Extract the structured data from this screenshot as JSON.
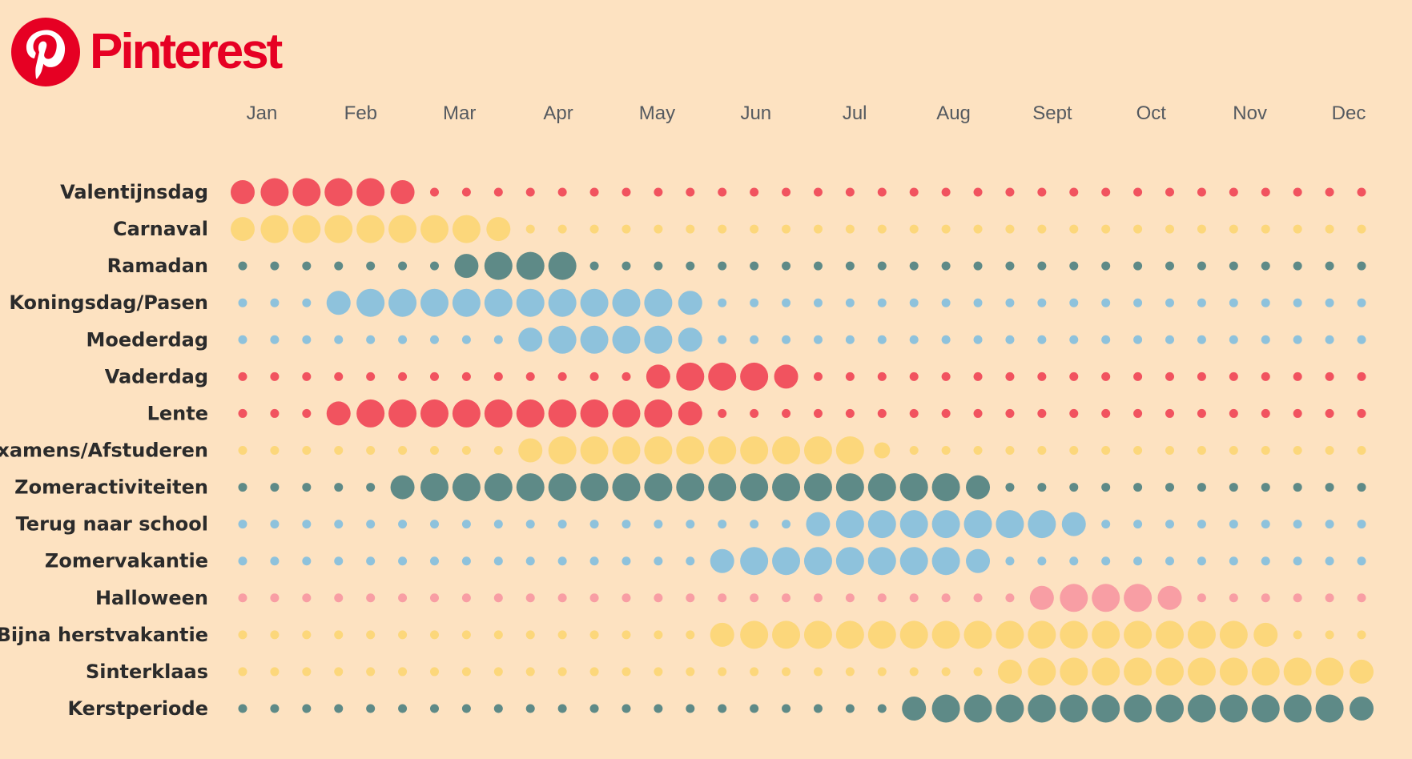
{
  "brand": {
    "name": "Pinterest",
    "color": "#e60023",
    "icon": "pinterest-logo-icon"
  },
  "colors": {
    "background": "#fde2c1",
    "red": "#f1535f",
    "pink": "#f89ea4",
    "yellow": "#fcd77b",
    "teal": "#5e8a87",
    "blue": "#8ec2dc"
  },
  "chart_data": {
    "type": "scatter",
    "title": "",
    "xlabel": "",
    "ylabel": "",
    "x_ticks": [
      "Jan",
      "Feb",
      "Mar",
      "Apr",
      "May",
      "Jun",
      "Jul",
      "Aug",
      "Sept",
      "Oct",
      "Nov",
      "Dec"
    ],
    "points_per_row": 36,
    "size_scale": "0 = small dot, 1 = medium, 2 = large, 3 = largest",
    "series": [
      {
        "name": "Valentijnsdag",
        "color": "red",
        "levels": [
          2,
          3,
          3,
          3,
          3,
          2,
          0,
          0,
          0,
          0,
          0,
          0,
          0,
          0,
          0,
          0,
          0,
          0,
          0,
          0,
          0,
          0,
          0,
          0,
          0,
          0,
          0,
          0,
          0,
          0,
          0,
          0,
          0,
          0,
          0,
          0
        ]
      },
      {
        "name": "Carnaval",
        "color": "yellow",
        "levels": [
          2,
          3,
          3,
          3,
          3,
          3,
          3,
          3,
          2,
          0,
          0,
          0,
          0,
          0,
          0,
          0,
          0,
          0,
          0,
          0,
          0,
          0,
          0,
          0,
          0,
          0,
          0,
          0,
          0,
          0,
          0,
          0,
          0,
          0,
          0,
          0
        ]
      },
      {
        "name": "Ramadan",
        "color": "teal",
        "levels": [
          0,
          0,
          0,
          0,
          0,
          0,
          0,
          2,
          3,
          3,
          3,
          0,
          0,
          0,
          0,
          0,
          0,
          0,
          0,
          0,
          0,
          0,
          0,
          0,
          0,
          0,
          0,
          0,
          0,
          0,
          0,
          0,
          0,
          0,
          0,
          0
        ]
      },
      {
        "name": "Koningsdag/Pasen",
        "color": "blue",
        "levels": [
          0,
          0,
          0,
          2,
          3,
          3,
          3,
          3,
          3,
          3,
          3,
          3,
          3,
          3,
          2,
          0,
          0,
          0,
          0,
          0,
          0,
          0,
          0,
          0,
          0,
          0,
          0,
          0,
          0,
          0,
          0,
          0,
          0,
          0,
          0,
          0
        ]
      },
      {
        "name": "Moederdag",
        "color": "blue",
        "levels": [
          0,
          0,
          0,
          0,
          0,
          0,
          0,
          0,
          0,
          2,
          3,
          3,
          3,
          3,
          2,
          0,
          0,
          0,
          0,
          0,
          0,
          0,
          0,
          0,
          0,
          0,
          0,
          0,
          0,
          0,
          0,
          0,
          0,
          0,
          0,
          0
        ]
      },
      {
        "name": "Vaderdag",
        "color": "red",
        "levels": [
          0,
          0,
          0,
          0,
          0,
          0,
          0,
          0,
          0,
          0,
          0,
          0,
          0,
          2,
          3,
          3,
          3,
          2,
          0,
          0,
          0,
          0,
          0,
          0,
          0,
          0,
          0,
          0,
          0,
          0,
          0,
          0,
          0,
          0,
          0,
          0
        ]
      },
      {
        "name": "Lente",
        "color": "red",
        "levels": [
          0,
          0,
          0,
          2,
          3,
          3,
          3,
          3,
          3,
          3,
          3,
          3,
          3,
          3,
          2,
          0,
          0,
          0,
          0,
          0,
          0,
          0,
          0,
          0,
          0,
          0,
          0,
          0,
          0,
          0,
          0,
          0,
          0,
          0,
          0,
          0
        ]
      },
      {
        "name": "Examens/Afstuderen",
        "color": "yellow",
        "levels": [
          0,
          0,
          0,
          0,
          0,
          0,
          0,
          0,
          0,
          2,
          3,
          3,
          3,
          3,
          3,
          3,
          3,
          3,
          3,
          3,
          1,
          0,
          0,
          0,
          0,
          0,
          0,
          0,
          0,
          0,
          0,
          0,
          0,
          0,
          0,
          0
        ]
      },
      {
        "name": "Zomeractiviteiten",
        "color": "teal",
        "levels": [
          0,
          0,
          0,
          0,
          0,
          2,
          3,
          3,
          3,
          3,
          3,
          3,
          3,
          3,
          3,
          3,
          3,
          3,
          3,
          3,
          3,
          3,
          3,
          2,
          0,
          0,
          0,
          0,
          0,
          0,
          0,
          0,
          0,
          0,
          0,
          0
        ]
      },
      {
        "name": "Terug naar school",
        "color": "blue",
        "levels": [
          0,
          0,
          0,
          0,
          0,
          0,
          0,
          0,
          0,
          0,
          0,
          0,
          0,
          0,
          0,
          0,
          0,
          0,
          2,
          3,
          3,
          3,
          3,
          3,
          3,
          3,
          2,
          0,
          0,
          0,
          0,
          0,
          0,
          0,
          0,
          0
        ]
      },
      {
        "name": "Zomervakantie",
        "color": "blue",
        "levels": [
          0,
          0,
          0,
          0,
          0,
          0,
          0,
          0,
          0,
          0,
          0,
          0,
          0,
          0,
          0,
          2,
          3,
          3,
          3,
          3,
          3,
          3,
          3,
          2,
          0,
          0,
          0,
          0,
          0,
          0,
          0,
          0,
          0,
          0,
          0,
          0
        ]
      },
      {
        "name": "Halloween",
        "color": "pink",
        "levels": [
          0,
          0,
          0,
          0,
          0,
          0,
          0,
          0,
          0,
          0,
          0,
          0,
          0,
          0,
          0,
          0,
          0,
          0,
          0,
          0,
          0,
          0,
          0,
          0,
          0,
          2,
          3,
          3,
          3,
          2,
          0,
          0,
          0,
          0,
          0,
          0
        ]
      },
      {
        "name": "Bijna herstvakantie",
        "color": "yellow",
        "levels": [
          0,
          0,
          0,
          0,
          0,
          0,
          0,
          0,
          0,
          0,
          0,
          0,
          0,
          0,
          0,
          2,
          3,
          3,
          3,
          3,
          3,
          3,
          3,
          3,
          3,
          3,
          3,
          3,
          3,
          3,
          3,
          3,
          2,
          0,
          0,
          0
        ]
      },
      {
        "name": "Sinterklaas",
        "color": "yellow",
        "levels": [
          0,
          0,
          0,
          0,
          0,
          0,
          0,
          0,
          0,
          0,
          0,
          0,
          0,
          0,
          0,
          0,
          0,
          0,
          0,
          0,
          0,
          0,
          0,
          0,
          2,
          3,
          3,
          3,
          3,
          3,
          3,
          3,
          3,
          3,
          3,
          2
        ]
      },
      {
        "name": "Kerstperiode",
        "color": "teal",
        "levels": [
          0,
          0,
          0,
          0,
          0,
          0,
          0,
          0,
          0,
          0,
          0,
          0,
          0,
          0,
          0,
          0,
          0,
          0,
          0,
          0,
          0,
          2,
          3,
          3,
          3,
          3,
          3,
          3,
          3,
          3,
          3,
          3,
          3,
          3,
          3,
          2
        ]
      }
    ],
    "grid": false,
    "legend": "none"
  }
}
